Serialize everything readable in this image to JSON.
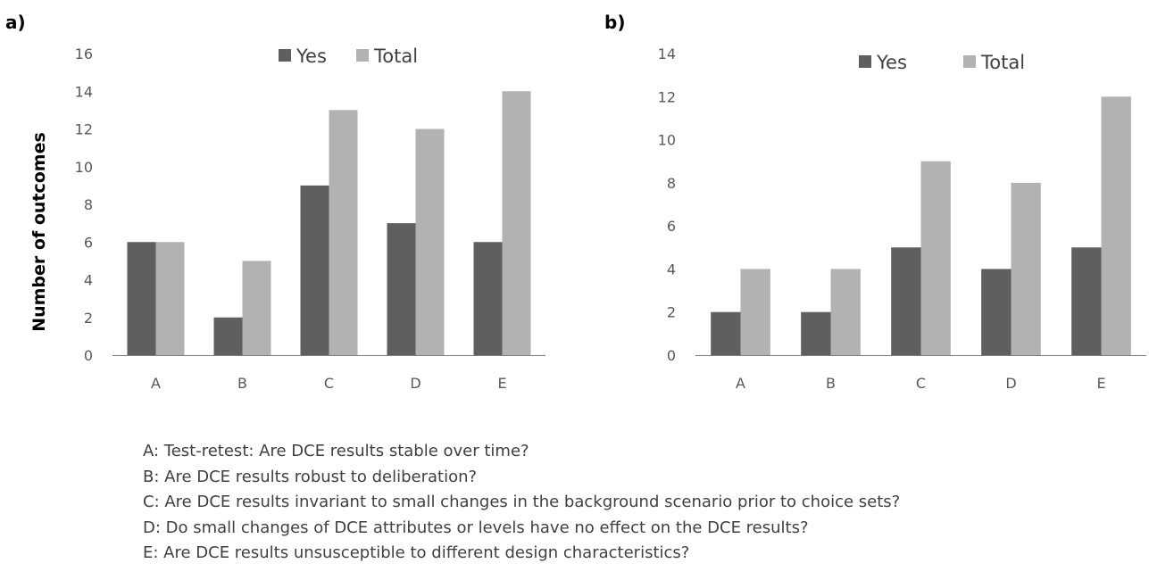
{
  "chart_data": [
    {
      "type": "bar",
      "panel_label": "a)",
      "categories": [
        "A",
        "B",
        "C",
        "D",
        "E"
      ],
      "series": [
        {
          "name": "Yes",
          "values": [
            6,
            2,
            9,
            7,
            6
          ],
          "color": "#5f5f5f"
        },
        {
          "name": "Total",
          "values": [
            6,
            5,
            13,
            12,
            14
          ],
          "color": "#b2b2b2"
        }
      ],
      "ylabel": "Number of outcomes",
      "xlabel": "",
      "ylim": [
        0,
        16
      ],
      "yticks": [
        0,
        2,
        4,
        6,
        8,
        10,
        12,
        14,
        16
      ],
      "grid": false,
      "legend": "top"
    },
    {
      "type": "bar",
      "panel_label": "b)",
      "categories": [
        "A",
        "B",
        "C",
        "D",
        "E"
      ],
      "series": [
        {
          "name": "Yes",
          "values": [
            2,
            2,
            5,
            4,
            5
          ],
          "color": "#5f5f5f"
        },
        {
          "name": "Total",
          "values": [
            4,
            4,
            9,
            8,
            12
          ],
          "color": "#b2b2b2"
        }
      ],
      "ylabel": "",
      "xlabel": "",
      "ylim": [
        0,
        14
      ],
      "yticks": [
        0,
        2,
        4,
        6,
        8,
        10,
        12,
        14
      ],
      "grid": false,
      "legend": "top"
    }
  ],
  "notes": [
    "A: Test-retest: Are DCE results stable over time?",
    "B: Are DCE results robust to deliberation?",
    "C: Are DCE results invariant to small changes in the background scenario prior to choice sets?",
    "D: Do small changes of DCE attributes or levels have no effect on the DCE results?",
    "E: Are DCE results unsusceptible to different design characteristics?"
  ]
}
